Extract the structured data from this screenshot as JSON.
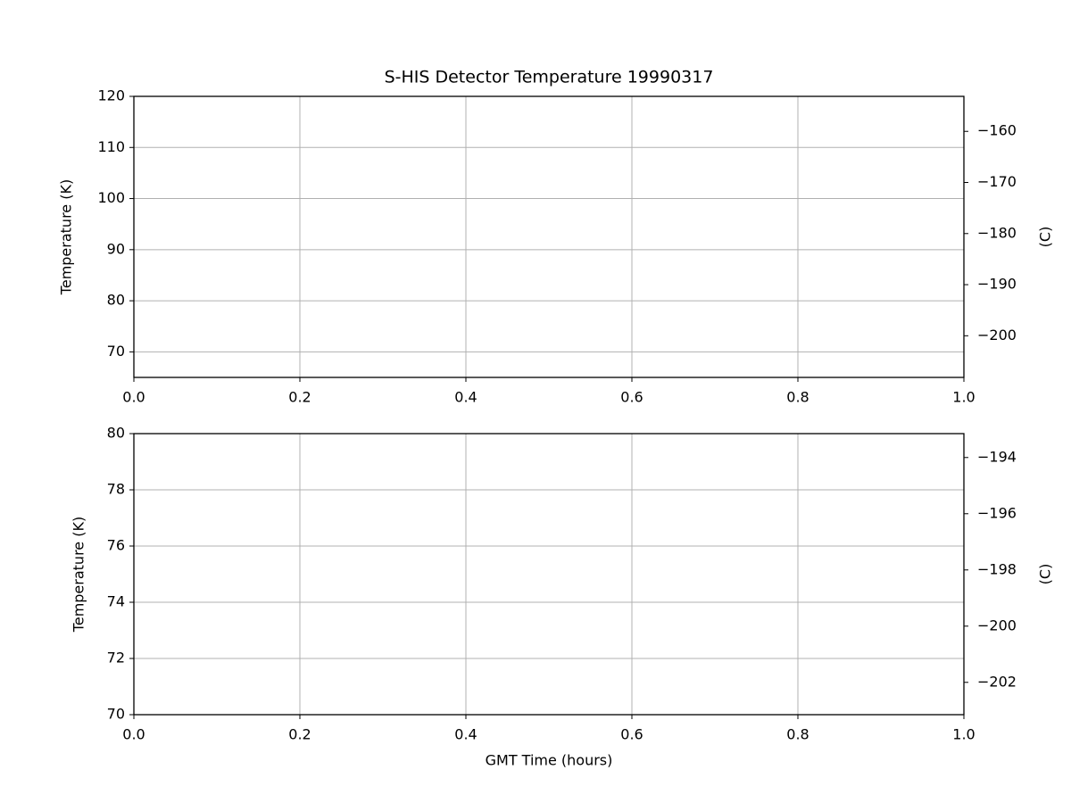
{
  "chart_data": [
    {
      "type": "line",
      "title": "S-HIS Detector Temperature 19990317",
      "ylabel": "Temperature (K)",
      "y2label": "(C)",
      "xlim": [
        0,
        1
      ],
      "xticks": [
        {
          "value": 0,
          "label": "0.0"
        },
        0.2,
        0.4,
        0.6,
        0.8,
        {
          "value": 1,
          "label": "1.0"
        }
      ],
      "ylim": [
        65,
        120
      ],
      "yticks": [
        70,
        80,
        90,
        100,
        110,
        120
      ],
      "y2lim": [
        -208.15,
        -153.15
      ],
      "y2ticks": [
        {
          "value": -160,
          "label": "−160"
        },
        {
          "value": -170,
          "label": "−170"
        },
        {
          "value": -180,
          "label": "−180"
        },
        {
          "value": -190,
          "label": "−190"
        },
        {
          "value": -200,
          "label": "−200"
        }
      ],
      "grid": true
    },
    {
      "type": "line",
      "xlabel": "GMT Time (hours)",
      "ylabel": "Temperature (K)",
      "y2label": "(C)",
      "xlim": [
        0,
        1
      ],
      "xticks": [
        {
          "value": 0,
          "label": "0.0"
        },
        0.2,
        0.4,
        0.6,
        0.8,
        {
          "value": 1,
          "label": "1.0"
        }
      ],
      "ylim": [
        70,
        80
      ],
      "yticks": [
        70,
        72,
        74,
        76,
        78,
        80
      ],
      "y2lim": [
        -203.15,
        -193.15
      ],
      "y2ticks": [
        {
          "value": -194,
          "label": "−194"
        },
        {
          "value": -196,
          "label": "−196"
        },
        {
          "value": -198,
          "label": "−198"
        },
        {
          "value": -200,
          "label": "−200"
        },
        {
          "value": -202,
          "label": "−202"
        }
      ],
      "grid": true
    }
  ]
}
